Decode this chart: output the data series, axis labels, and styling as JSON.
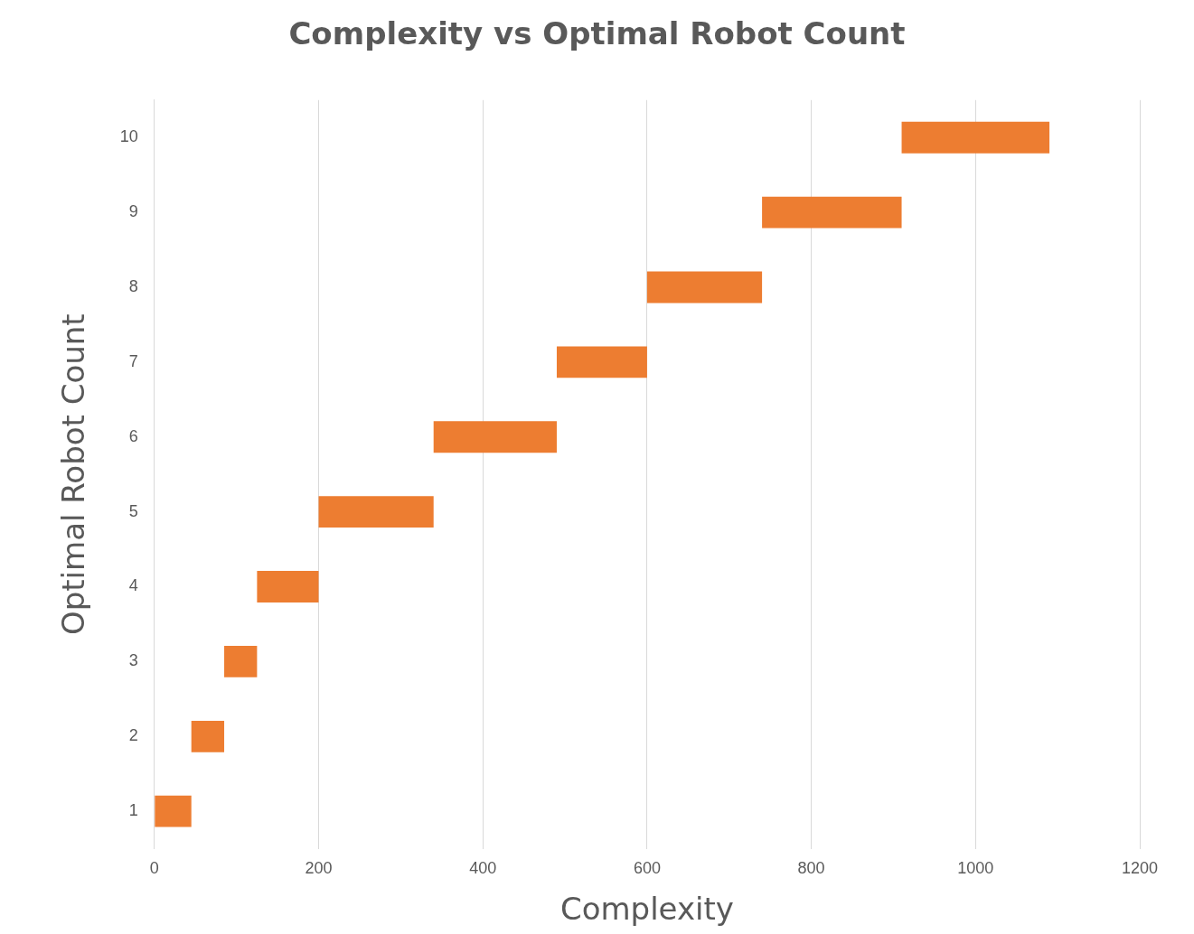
{
  "chart_data": {
    "type": "bar",
    "orientation": "horizontal",
    "title": "Complexity vs Optimal Robot Count",
    "xlabel": "Complexity",
    "ylabel": "Optimal Robot Count",
    "categories": [
      "10",
      "9",
      "8",
      "7",
      "6",
      "5",
      "4",
      "3",
      "2",
      "1"
    ],
    "base": [
      910,
      740,
      600,
      490,
      340,
      200,
      125,
      85,
      45,
      0
    ],
    "values": [
      180,
      170,
      140,
      110,
      150,
      140,
      75,
      40,
      40,
      45
    ],
    "color": "#ed7d31",
    "xlim": [
      0,
      1200
    ],
    "xticks": [
      0,
      200,
      400,
      600,
      800,
      1000,
      1200
    ],
    "grid": "x",
    "legend": false
  }
}
